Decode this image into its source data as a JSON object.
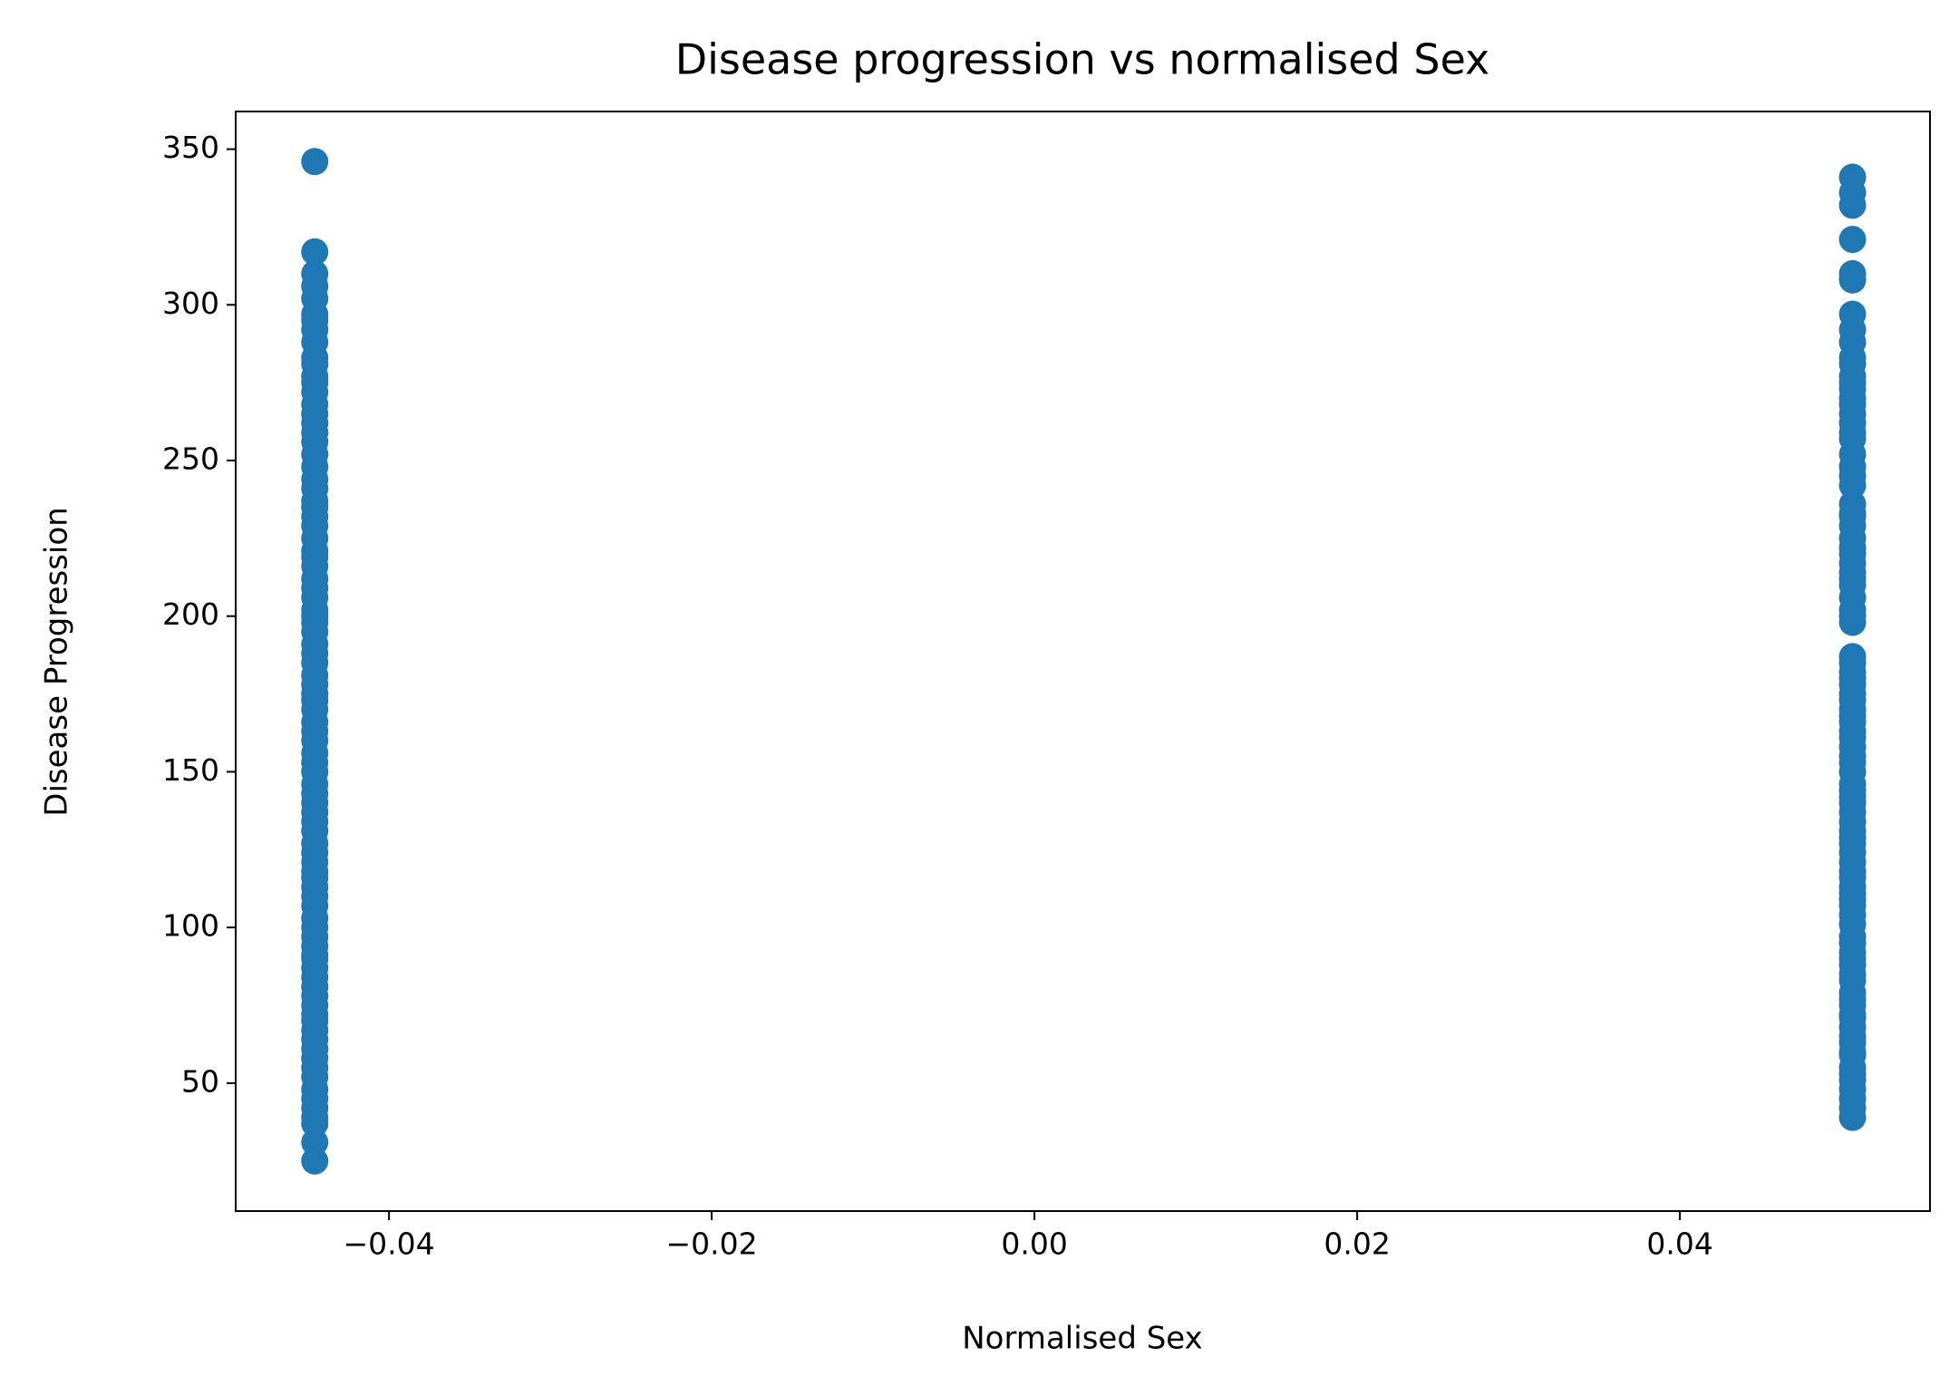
{
  "chart_data": {
    "type": "scatter",
    "title": "Disease progression vs normalised Sex",
    "x_label": "Normalised Sex",
    "y_label": "Disease Progression",
    "color": "#1f77b4",
    "xlim": [
      -0.0495,
      0.0555
    ],
    "ylim": [
      8.9,
      362.1
    ],
    "xticks": [
      {
        "value": -0.04,
        "label": "−0.04"
      },
      {
        "value": -0.02,
        "label": "−0.02"
      },
      {
        "value": 0,
        "label": "0.00"
      },
      0.02,
      0.04
    ],
    "yticks": [
      50,
      100,
      150,
      200,
      250,
      300,
      350
    ],
    "series": [
      {
        "x": -0.0446,
        "values": [
          25,
          31,
          37,
          39,
          42,
          45,
          48,
          52,
          55,
          58,
          61,
          64,
          67,
          70,
          72,
          75,
          78,
          81,
          84,
          87,
          90,
          91,
          94,
          97,
          100,
          103,
          107,
          110,
          113,
          116,
          118,
          121,
          124,
          127,
          131,
          134,
          137,
          140,
          143,
          146,
          150,
          153,
          156,
          160,
          163,
          166,
          170,
          173,
          175,
          178,
          181,
          185,
          188,
          191,
          195,
          198,
          200,
          202,
          206,
          209,
          212,
          216,
          219,
          221,
          225,
          229,
          232,
          235,
          237,
          241,
          244,
          248,
          252,
          256,
          259,
          262,
          265,
          268,
          272,
          275,
          277,
          281,
          283,
          288,
          292,
          295,
          297,
          302,
          306,
          310,
          317,
          346
        ]
      },
      {
        "x": 0.0507,
        "values": [
          39,
          42,
          45,
          48,
          51,
          53,
          55,
          59,
          60,
          63,
          65,
          68,
          71,
          72,
          75,
          77,
          79,
          83,
          85,
          88,
          90,
          92,
          95,
          97,
          101,
          104,
          107,
          109,
          111,
          113,
          116,
          118,
          121,
          124,
          127,
          129,
          131,
          134,
          137,
          140,
          142,
          144,
          146,
          150,
          153,
          155,
          158,
          161,
          163,
          166,
          168,
          170,
          173,
          175,
          178,
          180,
          182,
          185,
          187,
          198,
          200,
          202,
          206,
          210,
          212,
          214,
          217,
          220,
          222,
          225,
          229,
          232,
          233,
          236,
          242,
          245,
          248,
          252,
          257,
          259,
          262,
          265,
          268,
          270,
          273,
          275,
          277,
          281,
          283,
          288,
          292,
          297,
          308,
          310,
          321,
          332,
          336,
          341
        ]
      }
    ]
  }
}
